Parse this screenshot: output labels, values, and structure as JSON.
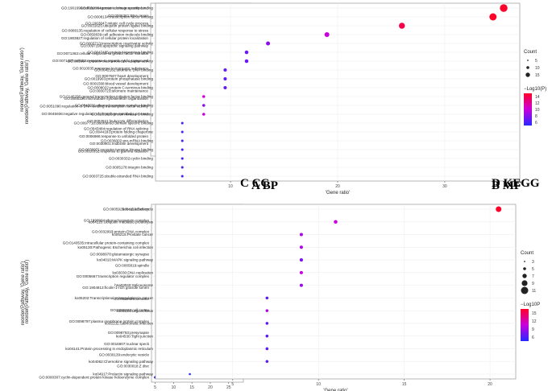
{
  "chart_data": [
    {
      "type": "scatter",
      "panel_label": "A BP",
      "xlabel": "'Gene ratio'",
      "ylabel": "reorder(Pathway, 'Gene ratio')",
      "xticks": [
        10,
        20,
        30
      ],
      "xlim": [
        7,
        33
      ],
      "size_legend": {
        "title": "Count",
        "values": [
          "5.0",
          "7.5",
          "10.0",
          "12.5",
          "15.0"
        ]
      },
      "color_legend": {
        "title": "−Log10(P)",
        "values": [
          "14",
          "12",
          "10",
          "8"
        ],
        "max": 15,
        "min": 7
      },
      "categories": [
        "GO:1901699:cellular response to nitrogen compound",
        "GO:0006281:DNA repair",
        "GO:1903047:mitotic cell cycle process",
        "GO:0080135:regulation of cellular response to stress",
        "GO:1903827:regulation of cellular protein localization",
        "GO:0097190:apoptotic signaling pathway",
        "GO:0071363:cellular response to growth factor stimulus",
        "GO:0071407:cellular response to organic cyclic compound",
        "GO:0010035:response to inorganic substance",
        "GO:0007507:heart development",
        "GO:0001568:blood vessel development",
        "GO:0000723:telomere maintenance",
        "GO:0000226:microtubule cytoskeleton organization",
        "GO:0051090:regulation of DNA-binding transcription factor activity",
        "GO:0045936:negative regulation of phosphate metabolic process",
        "GO:0002521:leukocyte differentiation",
        "GO:0043484:regulation of RNA splicing",
        "GO:0006986:response to unfolded protein",
        "GO:0030901:midbrain development",
        "GO:0010332:response to gamma radiation"
      ],
      "values": [
        31.5,
        27.5,
        25.5,
        25.3,
        24,
        22.5,
        22.5,
        20.5,
        20.5,
        20.5,
        19,
        18.8,
        19,
        17.5,
        17.5,
        17,
        15,
        11,
        9,
        8.8
      ],
      "count": [
        15,
        13,
        12,
        12,
        11,
        11,
        11,
        10,
        10,
        10,
        9,
        9,
        9,
        8,
        8,
        8,
        7,
        6,
        5,
        5
      ],
      "logp": [
        15,
        14,
        9,
        9,
        12,
        9,
        8,
        8,
        8,
        8,
        7,
        14,
        8,
        7,
        7,
        7,
        9,
        7,
        7,
        7
      ]
    },
    {
      "type": "scatter",
      "panel_label": "B MF",
      "xlabel": "'Gene ratio'",
      "ylabel": "reorder(Pathway, 'Gene ratio')",
      "xticks": [
        10,
        20,
        30
      ],
      "xlim": [
        3,
        37
      ],
      "size_legend": {
        "title": "Count",
        "values": [
          "5",
          "10",
          "15"
        ]
      },
      "color_legend": {
        "title": "−Log10(P)",
        "values": [
          "14",
          "12",
          "10",
          "8",
          "6"
        ],
        "max": 15,
        "min": 5
      },
      "categories": [
        "GO:0019904:protein domain specific binding",
        "GO:0008134:transcription factor binding",
        "GO:0031625:ubiquitin protein ligase binding",
        "GO:0050839:cell adhesion molecule binding",
        "GO:0003713:transcription coactivator activity",
        "GO:0047485:protein N-terminus binding",
        "GO:0030674:protein-macromolecule adaptor activity",
        "GO:0042162:telomeric DNA binding",
        "GO:0019903:protein phosphatase binding",
        "GO:0008022:protein C-terminus binding",
        "GO:0140296:general transcription initiation factor binding",
        "GO:0043021:ribonucleoprotein complex binding",
        "GO:0005080:protein kinase C binding",
        "GO:0097718:disordered domain specific binding",
        "GO:0044183:protein folding chaperone",
        "GO:0036002:pre-mRNA binding",
        "GO:0030971:receptor tyrosine kinase binding",
        "GO:0030332:cyclin binding",
        "GO:0005178:integrin binding",
        "GO:0003725:double-stranded RNA binding"
      ],
      "values": [
        35.5,
        34.5,
        26,
        19,
        13.5,
        11.5,
        11.5,
        9.5,
        9.5,
        9.5,
        7.5,
        7.5,
        7.5,
        5.5,
        5.5,
        5.5,
        5.5,
        5.5,
        5.5,
        5.5
      ],
      "count": [
        16,
        15,
        12,
        9,
        7,
        6,
        6,
        5,
        5,
        5,
        4,
        4,
        4,
        3,
        3,
        3,
        3,
        3,
        3,
        3
      ],
      "logp": [
        15,
        15,
        14,
        10,
        8,
        7,
        7,
        7,
        7,
        7,
        10,
        8,
        10,
        6,
        6,
        6,
        6,
        6,
        6,
        6
      ]
    },
    {
      "type": "scatter",
      "panel_label": "C CC",
      "xlabel": "'Gene ratio'",
      "ylabel": "reorder(Pathway, 'Gene ratio')",
      "xticks": [
        5,
        10,
        15,
        20,
        25
      ],
      "xlim": [
        4,
        29
      ],
      "size_legend": {
        "title": "Count",
        "values": [
          "3",
          "6",
          "9",
          "12",
          "15"
        ]
      },
      "color_legend": {
        "title": "−Log10(P)",
        "values": [
          "15",
          "10",
          "5"
        ],
        "max": 17,
        "min": 3
      },
      "categories": [
        "GO:0005925:focal adhesion",
        "GO:1990904:ribonucleoprotein complex",
        "GO:0032993:protein-DNA complex",
        "GO:0140535:intracellular protein-containing complex",
        "GO:0098978:glutamatergic synapse",
        "GO:0005819:spindle",
        "GO:0005667:transcription regulator complex",
        "GO:1904813:ficolin-1-rich granule lumen",
        "GO:0030425:dendrite",
        "GO:0005938:cell cortex",
        "GO:0098797:plasma membrane protein complex",
        "GO:0098793:presynapse",
        "GO:0016607:nuclear speck",
        "GO:0030139:endocytic vesicle",
        "GO:0030018:Z disc",
        "GO:0000307:cyclin-dependent protein kinase holoenzyme complex"
      ],
      "values": [
        27.5,
        20.5,
        18.5,
        16.5,
        16.5,
        13,
        13,
        11,
        11,
        11,
        9,
        9,
        9,
        7.2,
        7.2,
        5
      ],
      "count": [
        15,
        11,
        10,
        9,
        9,
        7,
        7,
        6,
        6,
        6,
        5,
        5,
        5,
        4,
        4,
        3
      ],
      "logp": [
        17,
        10,
        12,
        10,
        10,
        7,
        7,
        7,
        7,
        7,
        6,
        6,
        5,
        6,
        5,
        3
      ]
    },
    {
      "type": "scatter",
      "panel_label": "D KEGG",
      "xlabel": "'Gene ratio'",
      "ylabel": "reorder(Pathway, 'Gene ratio')",
      "xticks": [
        5,
        10,
        15,
        20
      ],
      "xlim": [
        0.5,
        21.5
      ],
      "size_legend": {
        "title": "Count",
        "values": [
          "3",
          "5",
          "7",
          "9",
          "11"
        ]
      },
      "color_legend": {
        "title": "−Log10P",
        "values": [
          "15",
          "12",
          "9",
          "6"
        ],
        "max": 16,
        "min": 4
      },
      "categories": [
        "ko04110:Cell cycle",
        "ko04120:Ubiquitin mediated proteolysis",
        "ko05215:Prostate cancer",
        "ko05130:Pathogenic Escherichia coli infection",
        "ko04010:MAPK signaling pathway",
        "ko03030:DNA replication",
        "hsa03040:Spliceosome",
        "ko05202:Transcriptional misregulation in cancer",
        "ko05134:Legionellosis",
        "ko05132:Salmonella infection",
        "ko04530:Tight junction",
        "ko04141:Protein processing in endoplasmic reticulum",
        "ko04062:Chemokine signaling pathway",
        "ko04917:Prolactin signaling pathway"
      ],
      "values": [
        20.5,
        11,
        9,
        9,
        9,
        9,
        9,
        7,
        7,
        7,
        7,
        7,
        7,
        2.5
      ],
      "count": [
        11,
        6,
        5,
        5,
        5,
        5,
        5,
        4,
        4,
        4,
        4,
        4,
        4,
        2
      ],
      "logp": [
        16,
        10,
        9,
        9,
        7,
        10,
        8,
        6,
        9,
        6,
        6,
        6,
        6,
        4
      ]
    }
  ]
}
